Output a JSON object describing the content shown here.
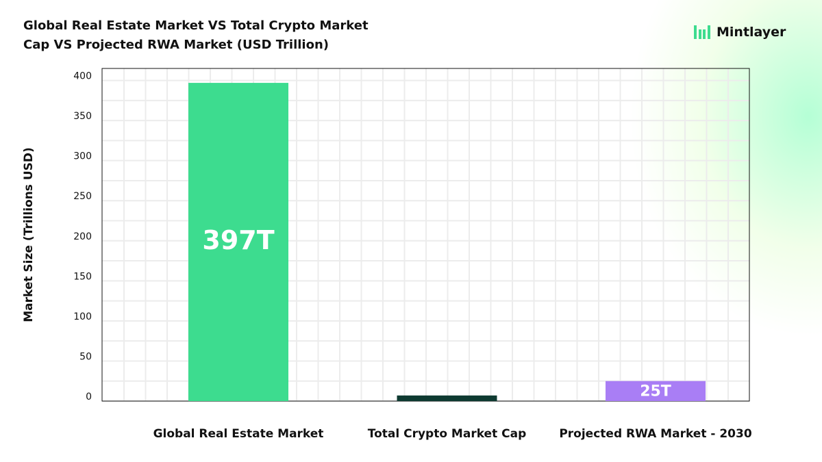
{
  "brand": "Mintlayer",
  "chart_data": {
    "type": "bar",
    "title": "Global Real Estate Market VS Total Crypto Market Cap VS Projected RWA Market (USD Trillion)",
    "ylabel": "Market Size (Trillions USD)",
    "categories": [
      "Global Real Estate Market",
      "Total Crypto Market Cap",
      "Projected RWA Market - 2030"
    ],
    "values": [
      397,
      7,
      25
    ],
    "value_labels": [
      "397T",
      null,
      "25T"
    ],
    "colors": [
      "#3ddc8f",
      "#0e3a31",
      "#a97ef5"
    ],
    "ylim": [
      0,
      415
    ],
    "yticks": [
      0,
      50,
      100,
      150,
      200,
      250,
      300,
      350,
      400
    ],
    "grid": true
  }
}
